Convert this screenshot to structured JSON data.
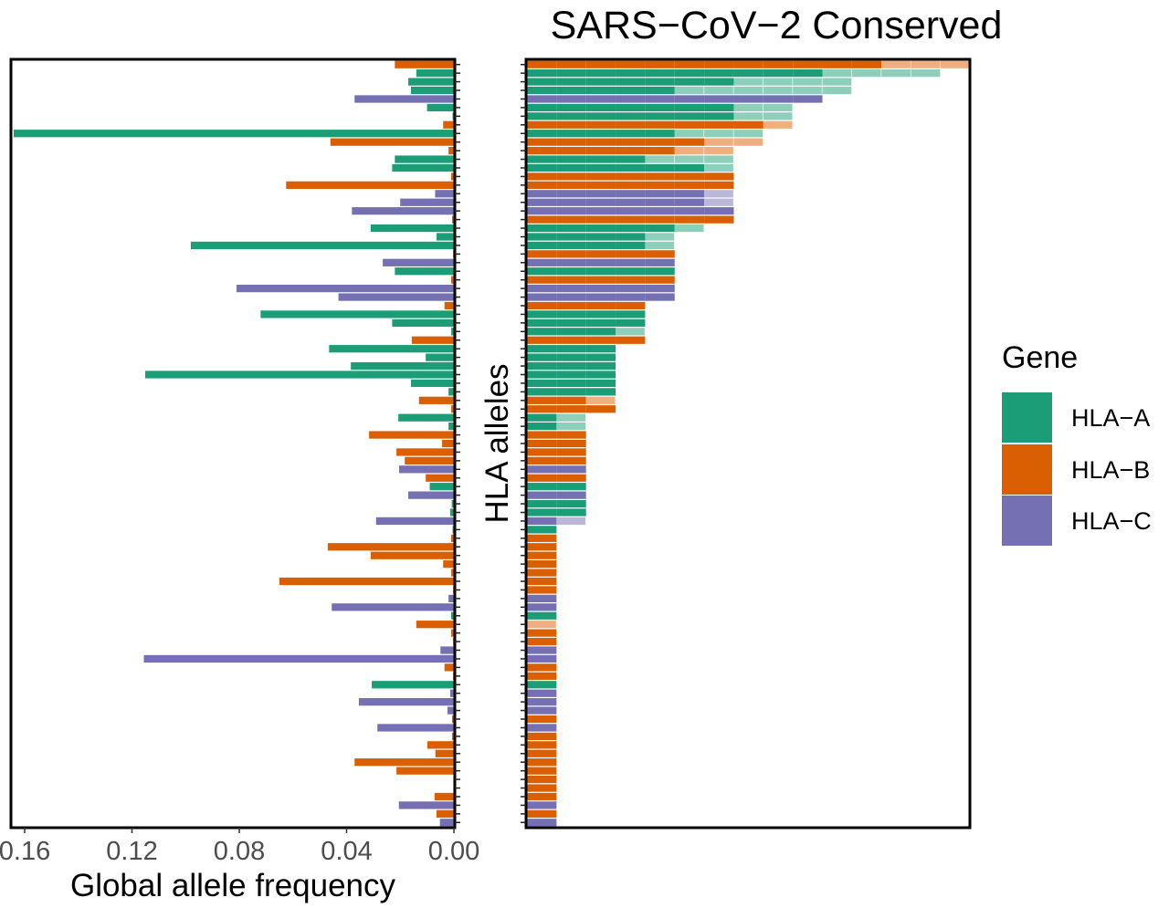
{
  "chart_data": [
    {
      "type": "bar",
      "orientation": "horizontal",
      "panel": "left",
      "title": "",
      "xlabel": "Global allele frequency",
      "ylabel": "",
      "xlim": [
        0.165,
        0.0
      ],
      "x_reversed": true,
      "xticks": [
        0.16,
        0.12,
        0.08,
        0.04,
        0.0
      ],
      "xtick_labels": [
        "0.16",
        "0.12",
        "0.08",
        "0.04",
        "0.00"
      ],
      "grid": false,
      "genes": [
        "B",
        "A",
        "A",
        "A",
        "C",
        "A",
        "A",
        "B",
        "A",
        "B",
        "B",
        "A",
        "A",
        "B",
        "B",
        "C",
        "C",
        "C",
        "B",
        "A",
        "A",
        "A",
        "B",
        "C",
        "A",
        "B",
        "C",
        "C",
        "B",
        "A",
        "A",
        "A",
        "B",
        "A",
        "A",
        "A",
        "A",
        "A",
        "A",
        "B",
        "B",
        "A",
        "A",
        "B",
        "B",
        "B",
        "B",
        "C",
        "B",
        "A",
        "C",
        "A",
        "A",
        "C",
        "A",
        "B",
        "B",
        "B",
        "B",
        "B",
        "B",
        "B",
        "C",
        "C",
        "A",
        "B",
        "B",
        "B",
        "C",
        "C",
        "B",
        "B",
        "A",
        "C",
        "C",
        "C",
        "B",
        "C",
        "B",
        "B",
        "B",
        "B",
        "B",
        "B",
        "B",
        "B",
        "C",
        "B",
        "C"
      ],
      "values": [
        0.022,
        0.014,
        0.017,
        0.016,
        0.037,
        0.01,
        0.0005,
        0.004,
        0.164,
        0.046,
        0.002,
        0.022,
        0.023,
        0.001,
        0.0625,
        0.007,
        0.02,
        0.038,
        0.0007,
        0.031,
        0.0065,
        0.098,
        0.0003,
        0.0265,
        0.022,
        0.001,
        0.081,
        0.043,
        0.0035,
        0.072,
        0.023,
        0.001,
        0.0157,
        0.0465,
        0.0105,
        0.0384,
        0.115,
        0.016,
        0.002,
        0.013,
        0.001,
        0.0207,
        0.002,
        0.0316,
        0.0044,
        0.0214,
        0.0183,
        0.0204,
        0.0105,
        0.009,
        0.017,
        0.0008,
        0.0014,
        0.029,
        0.0005,
        0.001,
        0.047,
        0.031,
        0.004,
        0.001,
        0.065,
        0.0003,
        0.002,
        0.0455,
        0.001,
        0.014,
        0.001,
        0.0003,
        0.005,
        0.1155,
        0.0035,
        0.0003,
        0.0306,
        0.0014,
        0.0354,
        0.0024,
        0.0007,
        0.0285,
        0.0007,
        0.0099,
        0.0069,
        0.037,
        0.0214,
        0.0002,
        0.0002,
        0.0072,
        0.0205,
        0.0065,
        0.0052
      ]
    },
    {
      "type": "bar",
      "orientation": "horizontal",
      "stacked": true,
      "panel": "right",
      "title": "SARS−CoV−2 Conserved",
      "ylabel": "HLA alleles",
      "xlabel": "",
      "xlim": [
        0,
        15
      ],
      "grid": false,
      "series": [
        {
          "name": "solid",
          "description": "dark segment (count units)",
          "values": [
            12,
            10,
            7,
            5,
            10,
            7,
            7,
            8,
            5,
            6,
            5,
            4,
            6,
            7,
            7,
            6,
            6,
            7,
            7,
            5,
            4,
            4,
            5,
            5,
            5,
            5,
            5,
            5,
            4,
            4,
            4,
            3,
            4,
            3,
            3,
            3,
            3,
            3,
            3,
            2,
            3,
            1,
            1,
            2,
            2,
            2,
            2,
            2,
            2,
            2,
            2,
            2,
            2,
            1,
            1,
            1,
            1,
            1,
            1,
            1,
            1,
            1,
            1,
            1,
            1,
            0,
            1,
            1,
            1,
            1,
            1,
            1,
            1,
            1,
            1,
            1,
            1,
            1,
            1,
            1,
            1,
            1,
            1,
            1,
            1,
            1,
            1,
            1,
            1
          ]
        },
        {
          "name": "light",
          "description": "light (faded) extension segment (count units)",
          "values": [
            3,
            4,
            4,
            6,
            0,
            2,
            2,
            1,
            3,
            2,
            2,
            3,
            1,
            0,
            0,
            1,
            1,
            0,
            0,
            1,
            1,
            1,
            0,
            0,
            0,
            0,
            0,
            0,
            0,
            0,
            0,
            1,
            0,
            0,
            0,
            0,
            0,
            0,
            0,
            1,
            0,
            1,
            1,
            0,
            0,
            0,
            0,
            0,
            0,
            0,
            0,
            0,
            0,
            1,
            0,
            0,
            0,
            0,
            0,
            0,
            0,
            0,
            0,
            0,
            0,
            1,
            0,
            0,
            0,
            0,
            0,
            0,
            0,
            0,
            0,
            0,
            0,
            0,
            0,
            0,
            0,
            0,
            0,
            0,
            0,
            0,
            0,
            0,
            0
          ]
        }
      ]
    }
  ],
  "legend": {
    "title": "Gene",
    "placement": "right",
    "items": [
      {
        "label": "HLA−A",
        "key": "A",
        "color": "#1b9e77",
        "light": "#8dcfbb"
      },
      {
        "label": "HLA−B",
        "key": "B",
        "color": "#d95f02",
        "light": "#efaf80"
      },
      {
        "label": "HLA−C",
        "key": "C",
        "color": "#7570b3",
        "light": "#bab7d9"
      }
    ]
  }
}
